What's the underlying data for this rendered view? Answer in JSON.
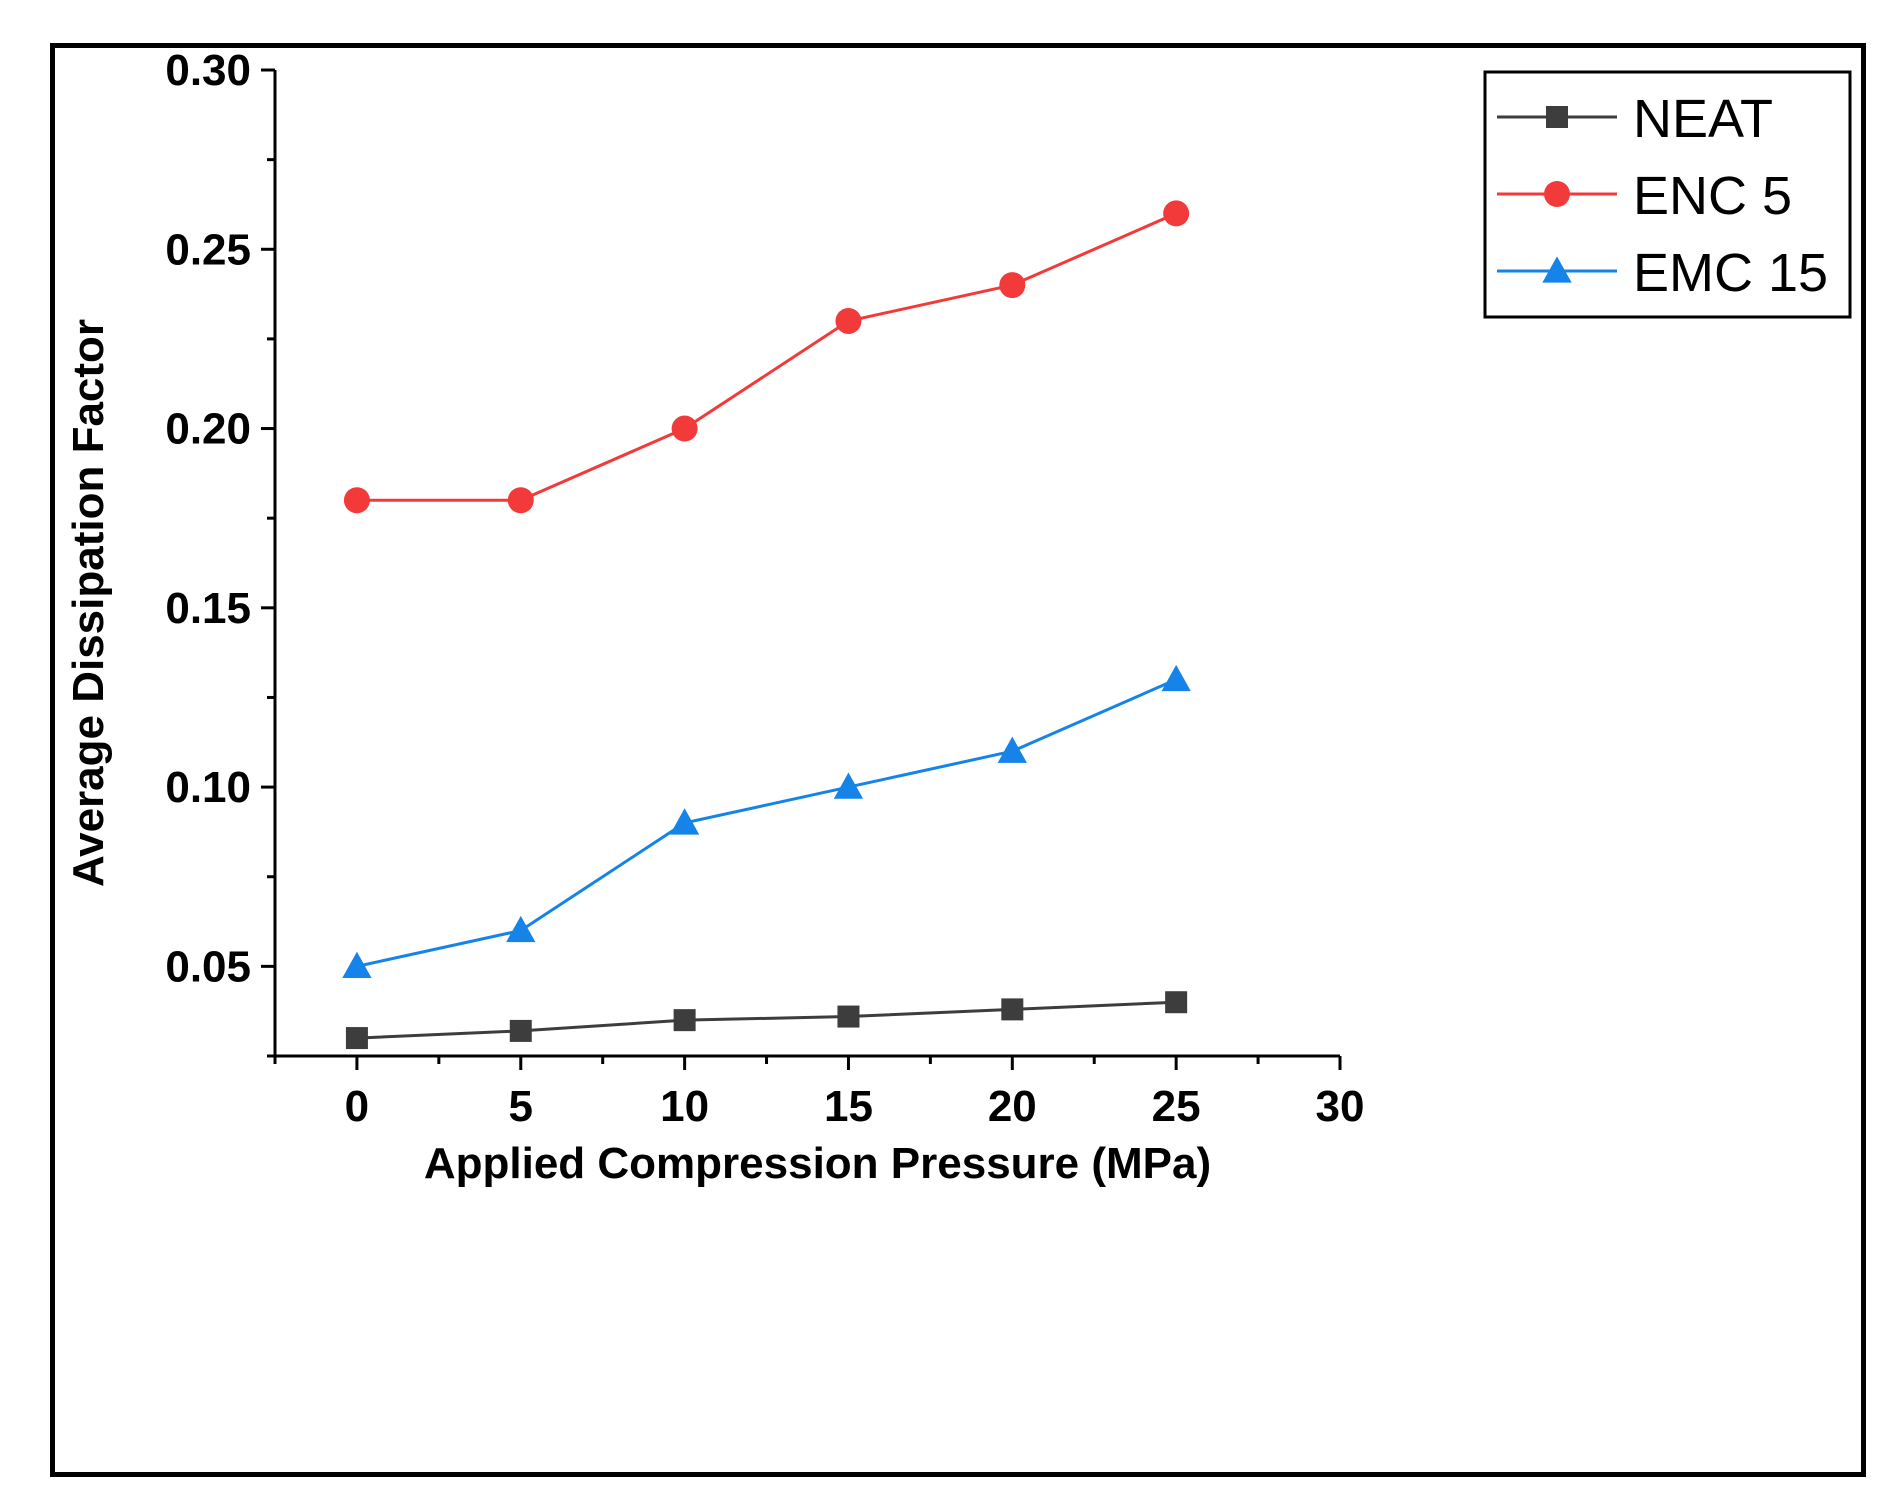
{
  "chart_data": {
    "type": "line",
    "title": "",
    "xlabel": "Applied Compression Pressure (MPa)",
    "ylabel": "Average Dissipation Factor",
    "xlim": [
      -2.5,
      30
    ],
    "ylim": [
      0.025,
      0.3
    ],
    "x_ticks": [
      0,
      5,
      10,
      15,
      20,
      25,
      30
    ],
    "x_tick_labels": [
      "0",
      "5",
      "10",
      "15",
      "20",
      "25",
      "30"
    ],
    "y_ticks": [
      0.05,
      0.1,
      0.15,
      0.2,
      0.25,
      0.3
    ],
    "y_tick_labels": [
      "0.05",
      "0.10",
      "0.15",
      "0.20",
      "0.25",
      "0.30"
    ],
    "grid": false,
    "legend_position": "top-right",
    "x": [
      0,
      5,
      10,
      15,
      20,
      25
    ],
    "series": [
      {
        "name": "NEAT",
        "marker": "square",
        "color": "#3d3d3d",
        "values": [
          0.03,
          0.032,
          0.035,
          0.036,
          0.038,
          0.04
        ]
      },
      {
        "name": "ENC 5",
        "marker": "circle",
        "color": "#f23a3a",
        "values": [
          0.18,
          0.18,
          0.2,
          0.23,
          0.24,
          0.26
        ]
      },
      {
        "name": "EMC 15",
        "marker": "triangle",
        "color": "#1583e8",
        "values": [
          0.05,
          0.06,
          0.09,
          0.1,
          0.11,
          0.13
        ]
      }
    ]
  }
}
